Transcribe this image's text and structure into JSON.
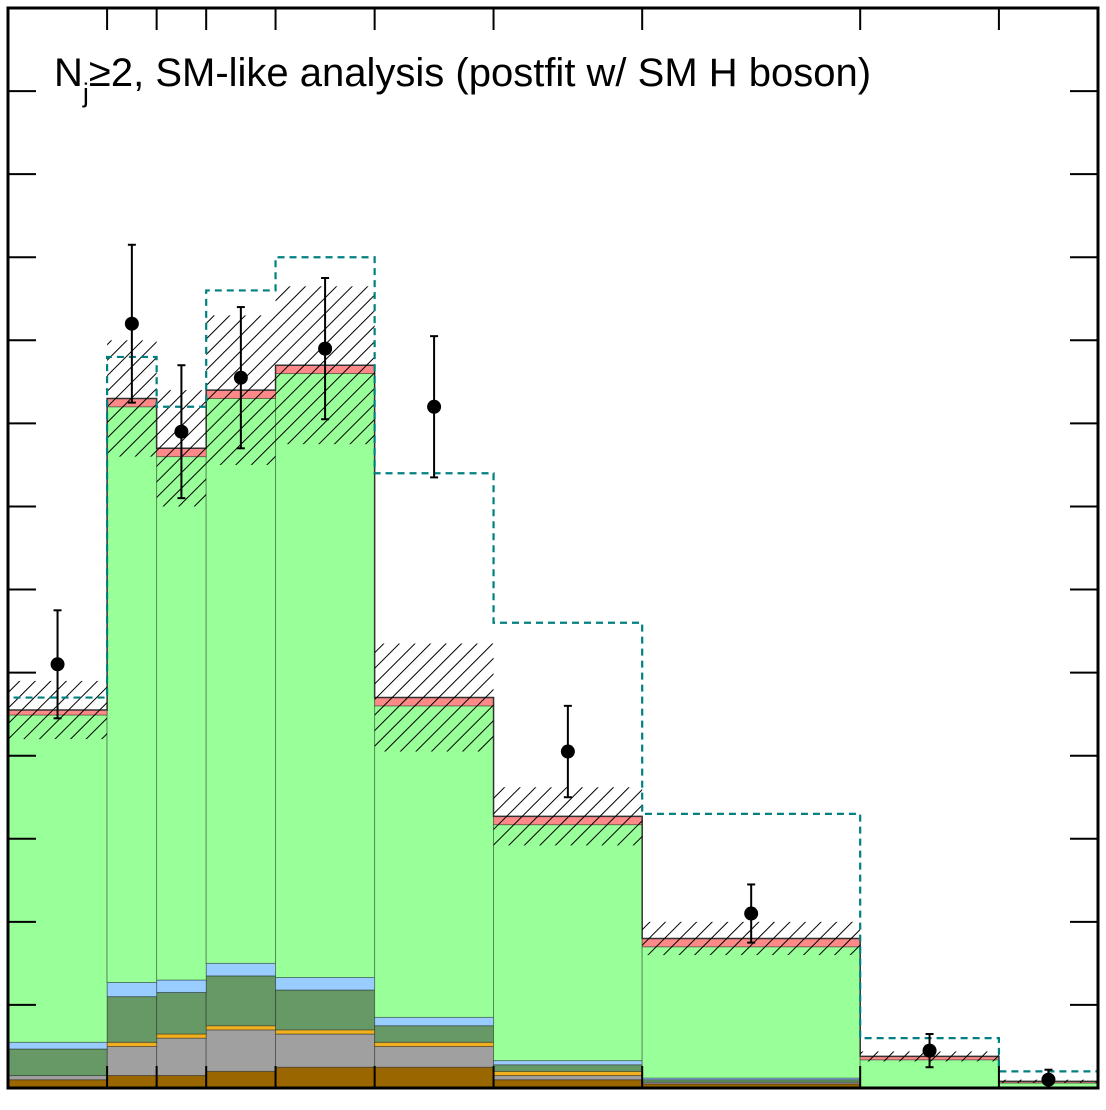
{
  "chart_data": {
    "type": "bar",
    "title": "N_j≥2, SM-like analysis (postfit w/ SM H boson)",
    "title_main": "N",
    "title_subscript": "j",
    "title_rest": "≥2, SM-like analysis (postfit w/ SM H boson)",
    "xlabel": "",
    "ylabel": "",
    "xlim": [
      0,
      11
    ],
    "ylim": [
      0,
      13
    ],
    "bin_edges": [
      0,
      1,
      1.5,
      2,
      2.7,
      3.7,
      4.9,
      6.4,
      8.6,
      10,
      11
    ],
    "stack_order_bottom_to_top": [
      "brown",
      "gray",
      "orange",
      "darkgreen",
      "lightblue",
      "green",
      "red"
    ],
    "series": [
      {
        "id": "brown",
        "color": "#996600",
        "values": [
          0.1,
          0.15,
          0.15,
          0.2,
          0.25,
          0.25,
          0.1,
          0.05,
          0.0,
          0.0
        ]
      },
      {
        "id": "gray",
        "color": "#a0a0a0",
        "values": [
          0.05,
          0.35,
          0.45,
          0.5,
          0.4,
          0.25,
          0.05,
          0.02,
          0.0,
          0.0
        ]
      },
      {
        "id": "orange",
        "color": "#f0b020",
        "values": [
          0.0,
          0.05,
          0.05,
          0.05,
          0.05,
          0.05,
          0.05,
          0.0,
          0.0,
          0.0
        ]
      },
      {
        "id": "darkgreen",
        "color": "#669966",
        "values": [
          0.32,
          0.55,
          0.5,
          0.6,
          0.48,
          0.2,
          0.08,
          0.03,
          0.0,
          0.0
        ]
      },
      {
        "id": "lightblue",
        "color": "#99ccff",
        "values": [
          0.08,
          0.17,
          0.15,
          0.15,
          0.15,
          0.1,
          0.05,
          0.02,
          0.0,
          0.0
        ]
      },
      {
        "id": "green",
        "color": "#99ff99",
        "values": [
          3.94,
          6.93,
          6.3,
          6.8,
          7.27,
          3.75,
          2.84,
          1.58,
          0.34,
          0.06
        ]
      },
      {
        "id": "red",
        "color": "#ff8888",
        "values": [
          0.06,
          0.1,
          0.1,
          0.1,
          0.1,
          0.1,
          0.1,
          0.1,
          0.04,
          0.02
        ]
      }
    ],
    "stack_total": [
      4.55,
      8.3,
      7.7,
      8.4,
      8.7,
      4.7,
      3.27,
      1.8,
      0.38,
      0.08
    ],
    "total_uncertainty": [
      0.35,
      0.7,
      0.7,
      0.9,
      0.95,
      0.65,
      0.35,
      0.2,
      0.06,
      0.02
    ],
    "dashed_series": {
      "color": "#008080",
      "values": [
        4.7,
        8.8,
        8.2,
        9.6,
        10.0,
        7.4,
        5.6,
        3.3,
        0.6,
        0.2
      ]
    },
    "data_points": {
      "x": [
        0.5,
        1.25,
        1.75,
        2.35,
        3.2,
        4.3,
        5.65,
        7.5,
        9.3,
        10.5
      ],
      "y": [
        5.1,
        9.2,
        7.9,
        8.55,
        8.9,
        8.2,
        4.05,
        2.1,
        0.45,
        0.1
      ],
      "err": [
        0.65,
        0.95,
        0.8,
        0.85,
        0.85,
        0.85,
        0.55,
        0.35,
        0.2,
        0.12
      ]
    },
    "y_major_ticks": [
      1,
      2,
      3,
      4,
      5,
      6,
      7,
      8,
      9,
      10,
      11,
      12,
      13
    ],
    "x_ticks": [
      1,
      1.5,
      2,
      2.7,
      3.7,
      4.9,
      6.4,
      8.6,
      10
    ]
  }
}
